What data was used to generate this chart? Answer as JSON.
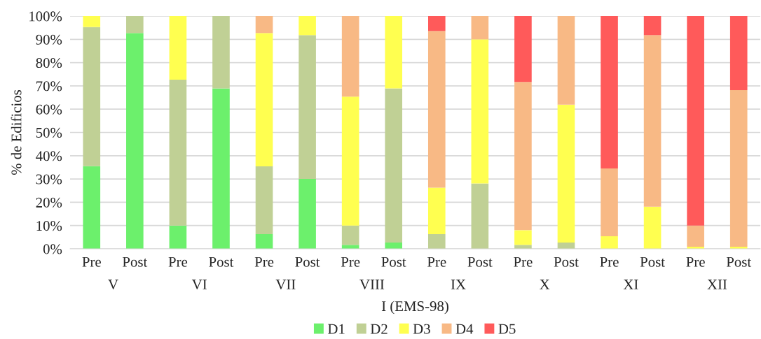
{
  "chart_data": {
    "type": "bar",
    "stacked": true,
    "categories": [
      "Pre",
      "Post",
      "Pre",
      "Post",
      "Pre",
      "Post",
      "Pre",
      "Post",
      "Pre",
      "Post",
      "Pre",
      "Post",
      "Pre",
      "Post",
      "Pre",
      "Post"
    ],
    "annotations": [
      "V",
      "VI",
      "VII",
      "VIII",
      "IX",
      "X",
      "XI",
      "XII"
    ],
    "xlabel": "I (EMS-98)",
    "ylabel": "% de Edificios",
    "series": [
      {
        "name": "D1",
        "color": "#6cf06c",
        "values": [
          35.5,
          92.7,
          10,
          68.9,
          6.3,
          30,
          1.7,
          2.7,
          0,
          0,
          0,
          0,
          0,
          0,
          0,
          0
        ]
      },
      {
        "name": "D2",
        "color": "#c0d095",
        "values": [
          59.8,
          7.3,
          62.7,
          31.1,
          29.1,
          61.8,
          8.3,
          66.2,
          6.3,
          28.1,
          1.7,
          2.7,
          0,
          0,
          0,
          0
        ]
      },
      {
        "name": "D3",
        "color": "#ffff50",
        "values": [
          4.7,
          0,
          27.3,
          0,
          57.3,
          8.2,
          55.4,
          31.1,
          20,
          61.9,
          6.3,
          59.2,
          5.4,
          18.1,
          0.9,
          0.9
        ]
      },
      {
        "name": "D4",
        "color": "#f8b985",
        "values": [
          0,
          0,
          0,
          0,
          7.3,
          0,
          34.6,
          0,
          67.3,
          10,
          63.7,
          38.1,
          29.1,
          73.7,
          9.1,
          67.3
        ]
      },
      {
        "name": "D5",
        "color": "#ff5a5a",
        "values": [
          0,
          0,
          0,
          0,
          0,
          0,
          0,
          0,
          6.4,
          0,
          28.3,
          0,
          65.5,
          8.2,
          90,
          31.8
        ]
      }
    ],
    "ylim": [
      0,
      100
    ],
    "yticks": [
      {
        "value": 0,
        "label": "0%"
      },
      {
        "value": 10,
        "label": "10%"
      },
      {
        "value": 20,
        "label": "20%"
      },
      {
        "value": 30,
        "label": "30%"
      },
      {
        "value": 40,
        "label": "40%"
      },
      {
        "value": 50,
        "label": "50%"
      },
      {
        "value": 60,
        "label": "60%"
      },
      {
        "value": 70,
        "label": "70%"
      },
      {
        "value": 80,
        "label": "80%"
      },
      {
        "value": 90,
        "label": "90%"
      },
      {
        "value": 100,
        "label": "100%"
      }
    ],
    "grid": "y",
    "legend": "bottom"
  }
}
